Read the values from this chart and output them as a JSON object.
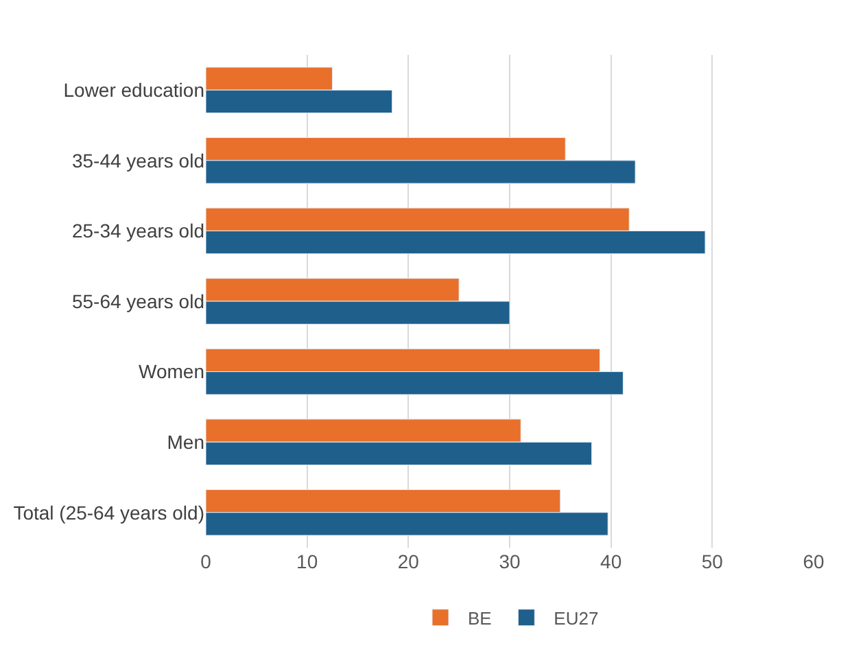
{
  "chart_data": {
    "type": "bar",
    "orientation": "horizontal",
    "categories": [
      "Lower education",
      "35-44 years old",
      "25-34 years old",
      "55-64 years old",
      "Women",
      "Men",
      "Total (25-64 years old)"
    ],
    "series": [
      {
        "name": "BE",
        "color": "#e8702a",
        "values": [
          12.5,
          35.5,
          41.8,
          25.0,
          38.9,
          31.1,
          35.0
        ]
      },
      {
        "name": "EU27",
        "color": "#1f5f8b",
        "values": [
          18.4,
          42.4,
          49.3,
          30.0,
          41.2,
          38.1,
          39.7
        ]
      }
    ],
    "xlim": [
      0,
      60
    ],
    "xticks": [
      0,
      10,
      20,
      30,
      40,
      50,
      60
    ],
    "grid": "x",
    "legend": "bottom"
  }
}
